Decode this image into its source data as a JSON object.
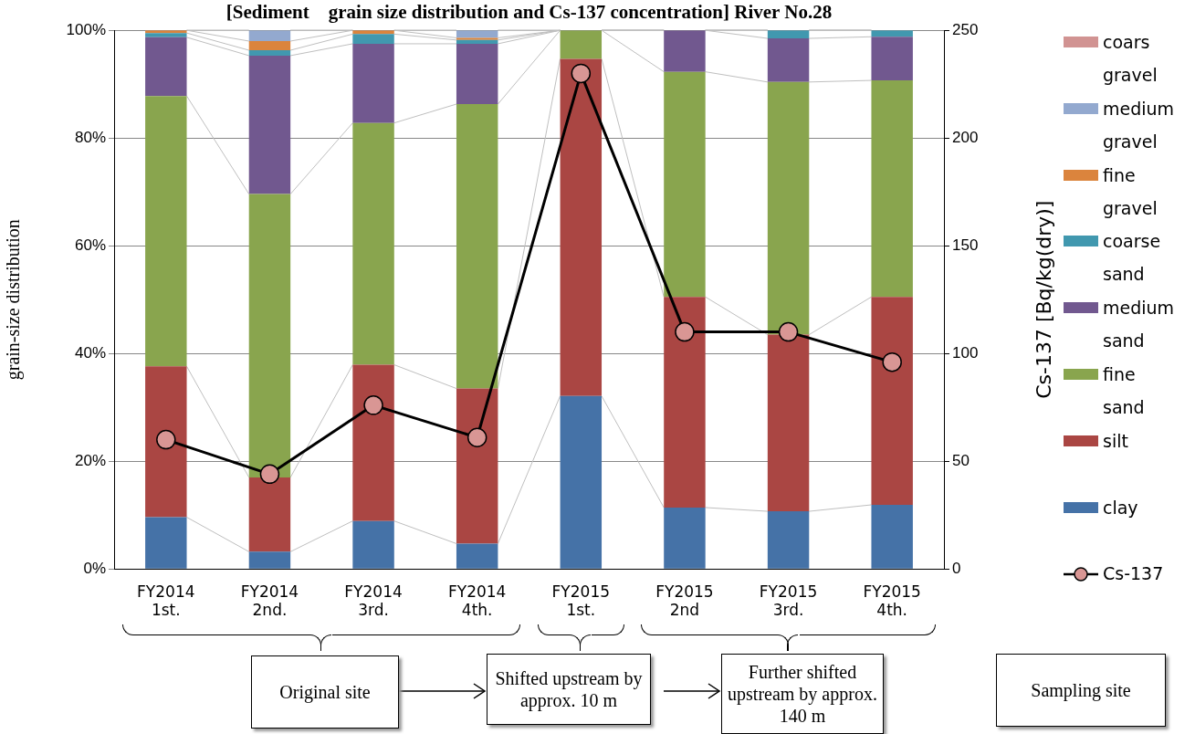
{
  "chart_data": {
    "type": "bar",
    "stacked": true,
    "title": "[Sediment　grain size distribution and Cs-137 concentration] River No.28",
    "categories": [
      "FY2014\n1st.",
      "FY2014\n2nd.",
      "FY2014\n3rd.",
      "FY2014\n4th.",
      "FY2015\n1st.",
      "FY2015\n2nd",
      "FY2015\n3rd.",
      "FY2015\n4th."
    ],
    "ylabel": "grain-size distribution",
    "y2label": "Cs-137 [Bq/kg(dry)]",
    "ylim": [
      0,
      100
    ],
    "yticks": [
      {
        "value": 0,
        "label": "0%"
      },
      {
        "value": 20,
        "label": "20%"
      },
      {
        "value": 40,
        "label": "40%"
      },
      {
        "value": 60,
        "label": "60%"
      },
      {
        "value": 80,
        "label": "80%"
      },
      {
        "value": 100,
        "label": "100%"
      }
    ],
    "y2lim": [
      0,
      250
    ],
    "y2ticks": [
      0,
      50,
      100,
      150,
      200,
      250
    ],
    "grid": "y",
    "legend": "right",
    "marker": "circle",
    "series": [
      {
        "name": "clay",
        "color": "#4572a7",
        "values": [
          9.6,
          3.2,
          8.9,
          4.7,
          32.1,
          11.4,
          10.7,
          11.9
        ]
      },
      {
        "name": "silt",
        "color": "#aa4643",
        "values": [
          28,
          13.8,
          29,
          28.8,
          62.6,
          39.1,
          32.8,
          38.6
        ]
      },
      {
        "name": "fine sand",
        "color": "#89a54e",
        "values": [
          50.2,
          52.6,
          44.9,
          52.8,
          5.3,
          41.8,
          46.9,
          40.2
        ]
      },
      {
        "name": "medium sand",
        "color": "#71588f",
        "values": [
          10.9,
          25.7,
          14.7,
          11.2,
          0,
          7.7,
          8.1,
          8.1
        ]
      },
      {
        "name": "coarse sand",
        "color": "#4198af",
        "values": [
          0.8,
          1.0,
          1.8,
          0.7,
          0,
          0,
          1.5,
          1.2
        ]
      },
      {
        "name": "fine gravel",
        "color": "#db843d",
        "values": [
          0.5,
          1.7,
          0.7,
          0.4,
          0,
          0,
          0,
          0
        ]
      },
      {
        "name": "medium gravel",
        "color": "#93a9cf",
        "values": [
          0,
          2.0,
          0,
          1.4,
          0,
          0,
          0,
          0
        ]
      },
      {
        "name": "coars gravel",
        "color": "#d19392",
        "values": [
          0,
          0,
          0,
          0,
          0,
          0,
          0,
          0
        ]
      },
      {
        "name": "Cs-137",
        "type": "line",
        "axis": "y2",
        "color": "#d99694",
        "values": [
          60,
          44,
          76,
          61,
          230,
          110,
          110,
          96
        ]
      }
    ],
    "annotations": [
      "Original site",
      "Shifted upstream by approx. 10 m",
      "Further shifted upstream by approx. 140 m",
      "Sampling site"
    ]
  }
}
